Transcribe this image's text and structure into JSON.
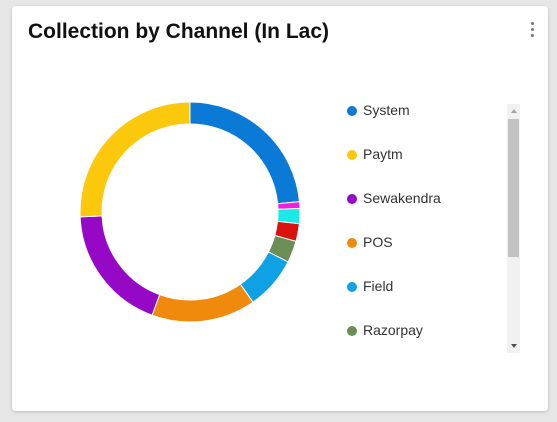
{
  "card": {
    "title": "Collection by Channel (In Lac)",
    "menu_icon": "more-vertical-icon"
  },
  "chart_data": {
    "type": "pie",
    "donut": true,
    "title": "Collection by Channel (In Lac)",
    "segments": [
      {
        "name": "System",
        "value": 23.5,
        "color": "#0a7ad6"
      },
      {
        "name": "",
        "value": 1.0,
        "color": "#f21fe3"
      },
      {
        "name": "",
        "value": 2.2,
        "color": "#1be8e8"
      },
      {
        "name": "",
        "value": 2.6,
        "color": "#d9140f"
      },
      {
        "name": "Razorpay",
        "value": 3.2,
        "color": "#6a8e55"
      },
      {
        "name": "Field",
        "value": 7.8,
        "color": "#0ea2e4"
      },
      {
        "name": "POS",
        "value": 15.3,
        "color": "#f08a0c"
      },
      {
        "name": "Sewakendra",
        "value": 18.7,
        "color": "#9508c6"
      },
      {
        "name": "Paytm",
        "value": 25.7,
        "color": "#fcc80b"
      }
    ],
    "legend_position": "right"
  },
  "legend": {
    "items": [
      {
        "label": "System",
        "color": "#0a7ad6"
      },
      {
        "label": "Paytm",
        "color": "#fcc80b"
      },
      {
        "label": "Sewakendra",
        "color": "#9508c6"
      },
      {
        "label": "POS",
        "color": "#f08a0c"
      },
      {
        "label": "Field",
        "color": "#0ea2e4"
      },
      {
        "label": "Razorpay",
        "color": "#6a8e55"
      }
    ]
  }
}
